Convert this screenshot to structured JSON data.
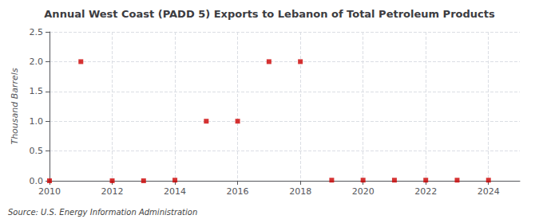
{
  "chart_data": {
    "type": "scatter",
    "title": "Annual West Coast (PADD 5) Exports to Lebanon of Total Petroleum Products",
    "ylabel": "Thousand Barrels",
    "annotation": "Source: U.S. Energy Information Administration",
    "x": [
      2010,
      2011,
      2012,
      2013,
      2014,
      2015,
      2016,
      2017,
      2018,
      2019,
      2020,
      2021,
      2022,
      2023,
      2024
    ],
    "values": [
      0.0,
      2.0,
      0.0,
      0.0,
      0.01,
      1.0,
      1.0,
      2.0,
      2.0,
      0.01,
      0.01,
      0.01,
      0.01,
      0.01,
      0.01
    ],
    "color": "#cc0000",
    "marker": "square",
    "xlim": [
      2010,
      2025
    ],
    "xticks": [
      2010,
      2012,
      2014,
      2016,
      2018,
      2020,
      2022,
      2024
    ],
    "ylim": [
      0,
      2.5
    ],
    "yticks": [
      {
        "value": 0,
        "label": "0.0"
      },
      0.5,
      {
        "value": 1,
        "label": "1.0"
      },
      1.5,
      {
        "value": 2,
        "label": "2.0"
      },
      2.5
    ],
    "grid": true
  }
}
